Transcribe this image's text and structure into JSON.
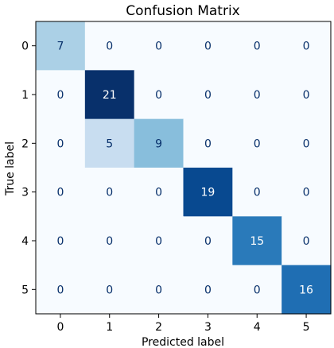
{
  "chart_data": {
    "type": "heatmap",
    "title": "Confusion Matrix",
    "xlabel": "Predicted label",
    "ylabel": "True label",
    "x_categories": [
      "0",
      "1",
      "2",
      "3",
      "4",
      "5"
    ],
    "y_categories": [
      "0",
      "1",
      "2",
      "3",
      "4",
      "5"
    ],
    "values": [
      [
        7,
        0,
        0,
        0,
        0,
        0
      ],
      [
        0,
        21,
        0,
        0,
        0,
        0
      ],
      [
        0,
        5,
        9,
        0,
        0,
        0
      ],
      [
        0,
        0,
        0,
        19,
        0,
        0
      ],
      [
        0,
        0,
        0,
        0,
        15,
        0
      ],
      [
        0,
        0,
        0,
        0,
        0,
        16
      ]
    ],
    "colormap": "Blues",
    "value_range": [
      0,
      21
    ],
    "grid": false,
    "colors": {
      "low": "#f7fbff",
      "high": "#08306b",
      "text_dark": "#08306b",
      "text_light": "#ffffff"
    }
  }
}
